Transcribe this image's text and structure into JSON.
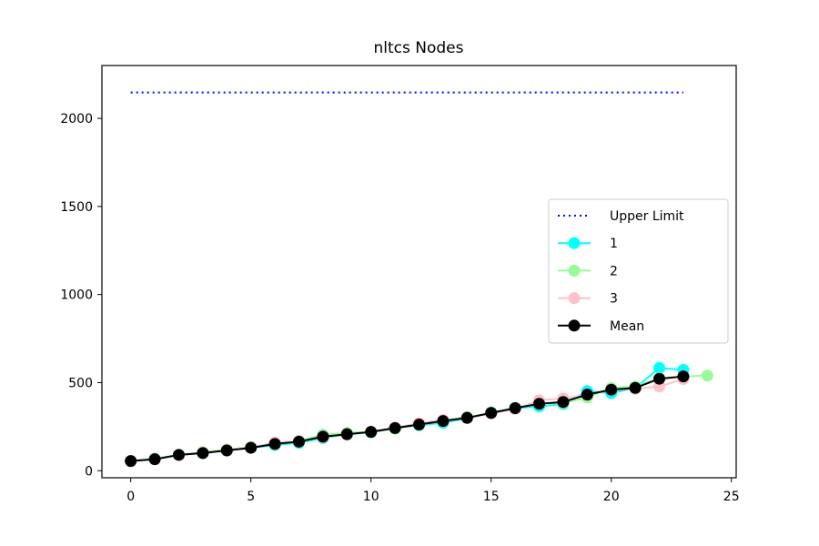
{
  "chart_data": {
    "type": "line",
    "title": "nltcs Nodes",
    "xlabel": "",
    "ylabel": "",
    "xlim": [
      -1.2,
      25.2
    ],
    "ylim": [
      -40,
      2300
    ],
    "xticks": [
      0,
      5,
      10,
      15,
      20,
      25
    ],
    "xtick_labels": [
      "0",
      "5",
      "10",
      "15",
      "20",
      "25"
    ],
    "yticks": [
      0,
      500,
      1000,
      1500,
      2000
    ],
    "ytick_labels": [
      "0",
      "500",
      "1000",
      "1500",
      "2000"
    ],
    "grid": false,
    "legend_position": "center-right",
    "reference_lines": [
      {
        "name": "Upper Limit",
        "y": 2147,
        "x_range": [
          0,
          23
        ],
        "style": "dotted",
        "color": "#0000ff"
      }
    ],
    "series": [
      {
        "name": "1",
        "color": "#00ffff",
        "x": [
          0,
          1,
          2,
          3,
          4,
          5,
          6,
          7,
          8,
          9,
          10,
          11,
          12,
          13,
          14,
          15,
          16,
          17,
          18,
          19,
          20,
          21,
          22,
          23
        ],
        "y": [
          55,
          68,
          90,
          100,
          115,
          130,
          145,
          158,
          185,
          205,
          218,
          240,
          258,
          272,
          298,
          330,
          355,
          365,
          378,
          452,
          440,
          470,
          583,
          572
        ]
      },
      {
        "name": "2",
        "color": "#98fb98",
        "x": [
          0,
          1,
          2,
          3,
          4,
          5,
          6,
          7,
          8,
          9,
          10,
          11,
          12,
          13,
          14,
          15,
          16,
          17,
          18,
          19,
          20,
          21,
          22,
          23,
          24
        ],
        "y": [
          55,
          66,
          90,
          105,
          120,
          135,
          150,
          170,
          205,
          215,
          220,
          238,
          262,
          285,
          305,
          325,
          358,
          380,
          385,
          415,
          470,
          478,
          525,
          535,
          540
        ]
      },
      {
        "name": "3",
        "color": "#ffc0cb",
        "x": [
          0,
          1,
          2,
          3,
          4,
          5,
          6,
          7,
          8,
          9,
          10,
          11,
          12,
          13,
          14,
          15,
          16,
          17,
          18,
          19,
          20,
          21,
          22,
          23
        ],
        "y": [
          55,
          65,
          88,
          102,
          118,
          132,
          160,
          168,
          190,
          205,
          222,
          245,
          270,
          288,
          298,
          325,
          350,
          400,
          410,
          432,
          460,
          465,
          478,
          520
        ]
      },
      {
        "name": "Mean",
        "color": "#000000",
        "x": [
          0,
          1,
          2,
          3,
          4,
          5,
          6,
          7,
          8,
          9,
          10,
          11,
          12,
          13,
          14,
          15,
          16,
          17,
          18,
          19,
          20,
          21,
          22,
          23
        ],
        "y": [
          55,
          65,
          90,
          100,
          115,
          130,
          152,
          165,
          193,
          207,
          220,
          242,
          262,
          282,
          300,
          328,
          355,
          380,
          390,
          432,
          460,
          470,
          522,
          535
        ]
      }
    ]
  },
  "colors": {
    "upper_limit": "#0000ff",
    "series_1": "#00ffff",
    "series_2": "#98fb98",
    "series_3": "#ffc0cb",
    "mean": "#000000"
  }
}
